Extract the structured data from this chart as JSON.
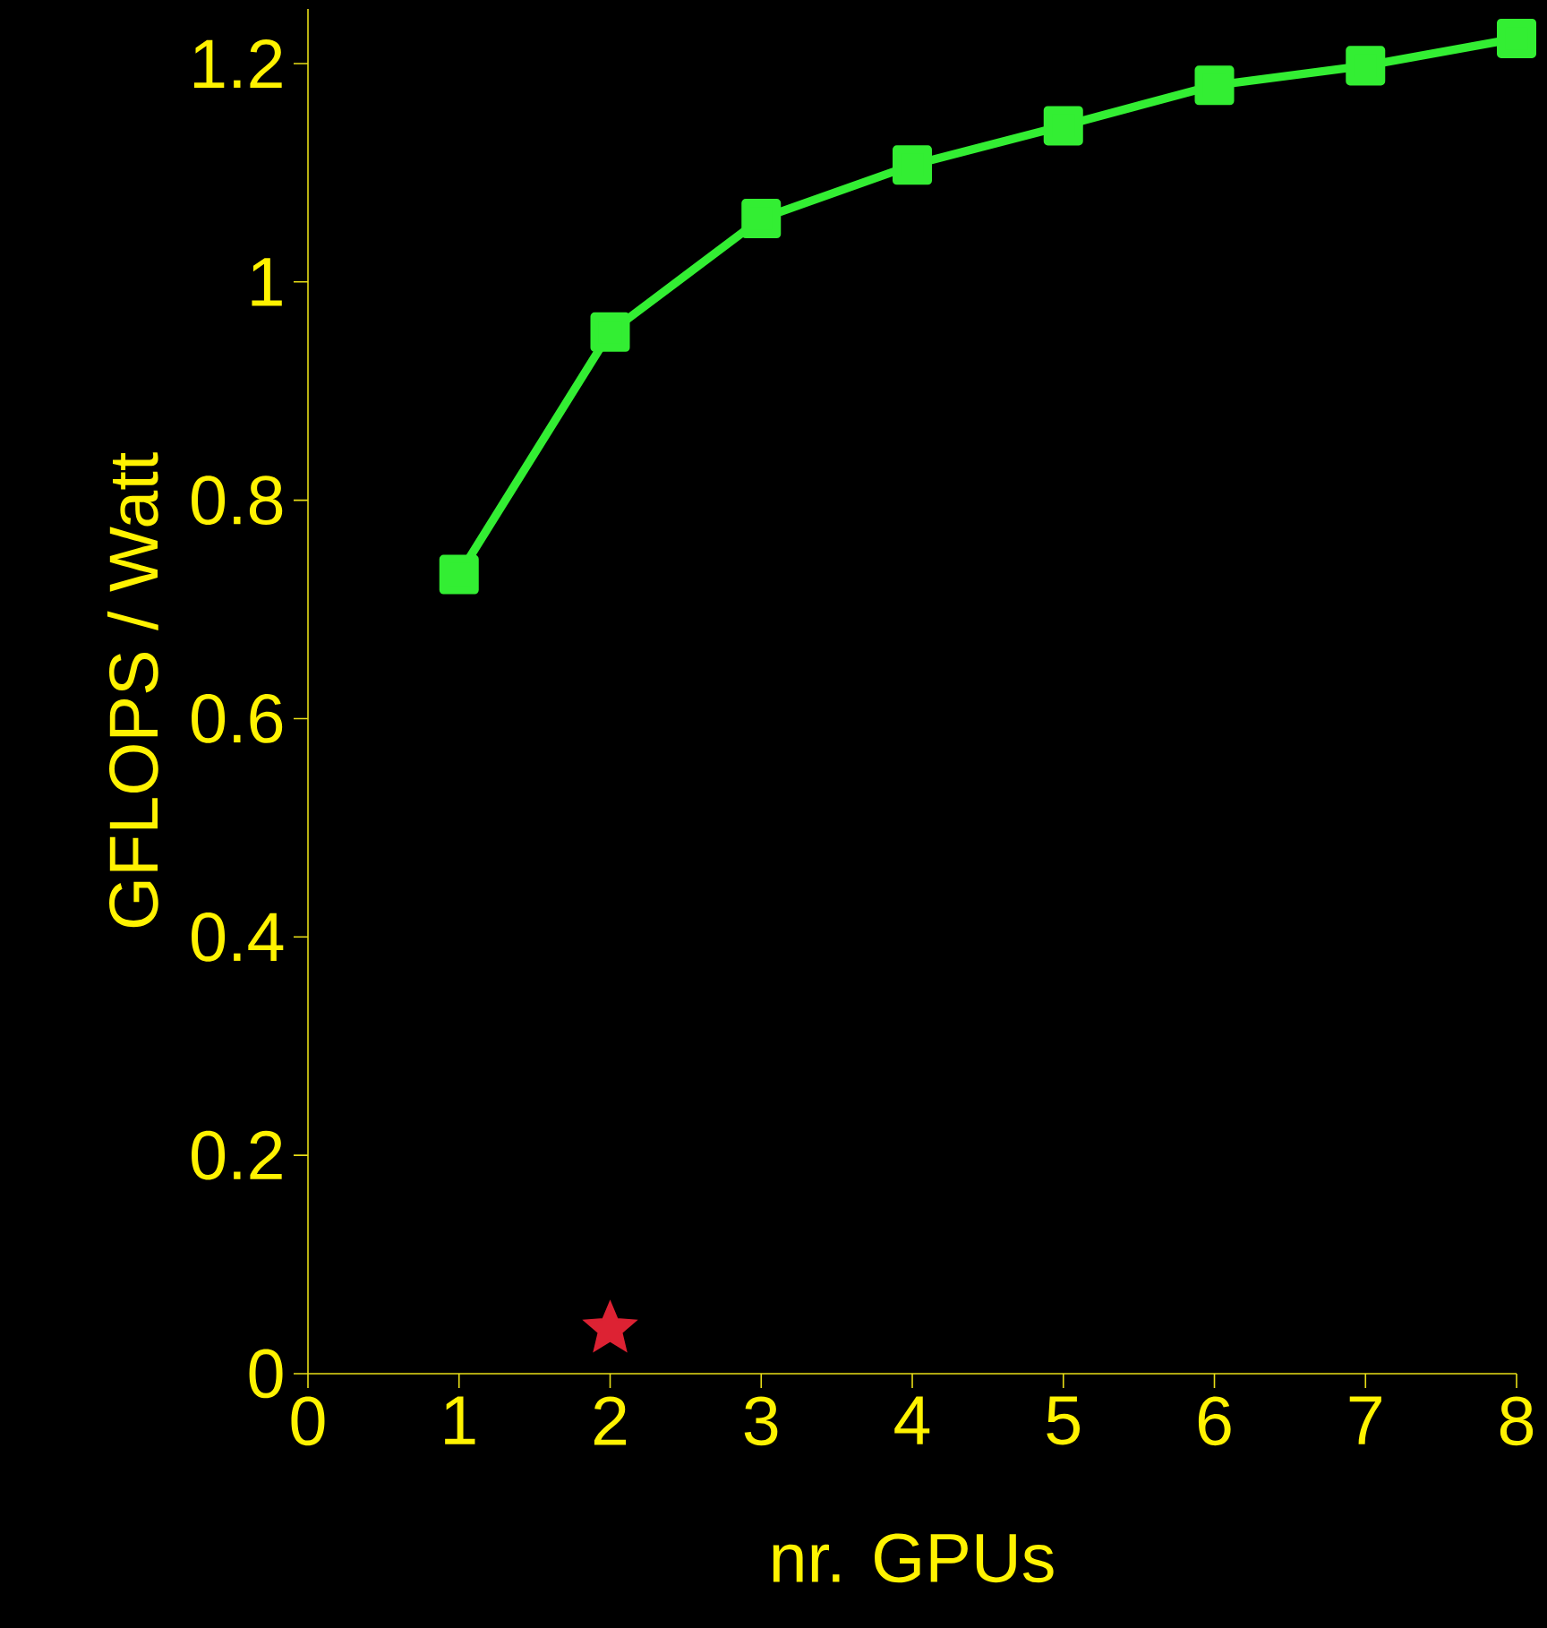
{
  "chart_data": {
    "type": "line",
    "xlabel": "nr. GPUs",
    "ylabel": "GFLOPS / Watt",
    "xlim": [
      0,
      8
    ],
    "xticks": [
      0,
      1,
      2,
      3,
      4,
      5,
      6,
      7,
      8
    ],
    "ylim": [
      0,
      1.25
    ],
    "yticks": [
      0,
      0.2,
      0.4,
      0.6,
      0.8,
      1,
      1.2
    ],
    "grid": false,
    "series": [
      {
        "color": "#33ee33",
        "marker": "square",
        "line_style": "solid",
        "x": [
          1,
          2,
          3,
          4,
          5,
          6,
          7,
          8
        ],
        "values": [
          0.732,
          0.954,
          1.058,
          1.107,
          1.143,
          1.18,
          1.198,
          1.223
        ]
      },
      {
        "type": "scatter",
        "color": "#dd2233",
        "marker": "star",
        "x": [
          2
        ],
        "values": [
          0.041
        ]
      }
    ]
  }
}
